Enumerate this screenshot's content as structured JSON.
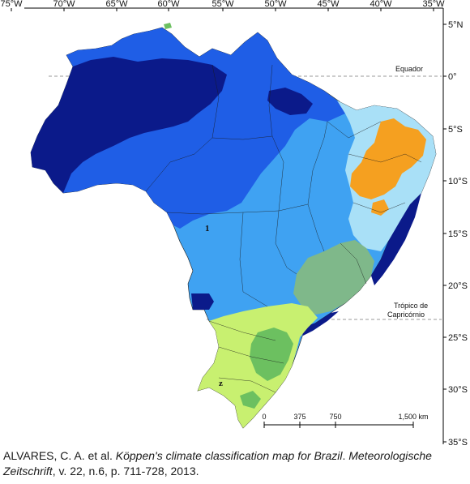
{
  "map": {
    "longitude_ticks": [
      "75°W",
      "70°W",
      "65°W",
      "60°W",
      "55°W",
      "50°W",
      "45°W",
      "40°W",
      "35°W"
    ],
    "latitude_ticks": [
      "5°N",
      "0°",
      "5°S",
      "10°S",
      "15°S",
      "20°S",
      "25°S",
      "30°S",
      "35°S"
    ],
    "equator_label": "Equador",
    "tropic_label_line1": "Trópico de",
    "tropic_label_line2": "Capricórnio",
    "region_label_1": "1",
    "region_label_2": "z",
    "scale": {
      "ticks": [
        "0",
        "375",
        "750",
        "1,500 km"
      ]
    },
    "colors": {
      "Af": "#0b1a8a",
      "Am": "#1f5ee6",
      "Aw": "#3fa2f2",
      "As": "#a9e0f7",
      "BSh": "#f5a020",
      "Cw": "#7fb88a",
      "Cfa": "#c8f070",
      "Cfb": "#6cc060"
    }
  },
  "citation": {
    "authors": "ALVARES, C. A. et al. ",
    "title": "Köppen's climate classification map for Brazil",
    "sep": ". ",
    "journal": "Meteorologische Zeitschrift",
    "details": ", v. 22, n.6, p. 711-728, 2013."
  }
}
